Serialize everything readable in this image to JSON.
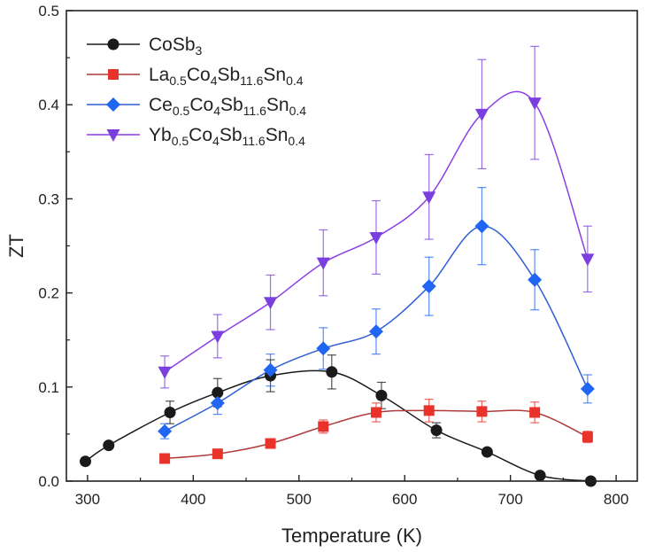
{
  "chart_data": {
    "type": "scatter",
    "title": "",
    "xlabel": "Temperature (K)",
    "ylabel": "ZT",
    "xlim": [
      280,
      820
    ],
    "ylim": [
      0,
      0.5
    ],
    "xticks": [
      300,
      400,
      500,
      600,
      700,
      800
    ],
    "yticks": [
      0.0,
      0.1,
      0.2,
      0.3,
      0.4,
      0.5
    ],
    "grid": false,
    "legend_position": "top-left",
    "series": [
      {
        "name": "CoSb3",
        "legend": {
          "base": "CoSb",
          "subs": [
            [
              "3",
              ""
            ]
          ]
        },
        "marker": "circle",
        "color": "#1a1a1a",
        "line_color": "#1a1a1a",
        "x": [
          298,
          320,
          378,
          423,
          473,
          531,
          578,
          630,
          678,
          728,
          776
        ],
        "y": [
          0.021,
          0.038,
          0.073,
          0.094,
          0.112,
          0.116,
          0.091,
          0.054,
          0.031,
          0.006,
          0.0
        ],
        "err": [
          0,
          0,
          0.012,
          0.015,
          0.017,
          0.018,
          0.014,
          0.008,
          0,
          0,
          0
        ]
      },
      {
        "name": "La0.5Co4Sb11.6Sn0.4",
        "legend": {
          "base": "La",
          "subs": [
            [
              "0.5",
              "Co"
            ],
            [
              "4",
              "Sb"
            ],
            [
              "11.6",
              "Sn"
            ],
            [
              "0.4",
              ""
            ]
          ]
        },
        "marker": "square",
        "color": "#e8322a",
        "line_color": "#b03a3a",
        "x": [
          373,
          423,
          473,
          523,
          573,
          623,
          673,
          723,
          773
        ],
        "y": [
          0.024,
          0.029,
          0.04,
          0.058,
          0.073,
          0.075,
          0.074,
          0.073,
          0.047
        ],
        "err": [
          0,
          0,
          0,
          0.007,
          0.01,
          0.012,
          0.011,
          0.011,
          0.006
        ]
      },
      {
        "name": "Ce0.5Co4Sb11.6Sn0.4",
        "legend": {
          "base": "Ce",
          "subs": [
            [
              "0.5",
              "Co"
            ],
            [
              "4",
              "Sb"
            ],
            [
              "11.6",
              "Sn"
            ],
            [
              "0.4",
              ""
            ]
          ]
        },
        "marker": "diamond",
        "color": "#2166f3",
        "line_color": "#2f5fd6",
        "x": [
          373,
          423,
          473,
          523,
          573,
          623,
          673,
          723,
          773
        ],
        "y": [
          0.053,
          0.083,
          0.118,
          0.141,
          0.159,
          0.207,
          0.271,
          0.214,
          0.098
        ],
        "err": [
          0.008,
          0.012,
          0.017,
          0.022,
          0.024,
          0.031,
          0.041,
          0.032,
          0.015
        ]
      },
      {
        "name": "Yb0.5Co4Sb11.6Sn0.4",
        "legend": {
          "base": "Yb",
          "subs": [
            [
              "0.5",
              "Co"
            ],
            [
              "4",
              "Sb"
            ],
            [
              "11.6",
              "Sn"
            ],
            [
              "0.4",
              ""
            ]
          ]
        },
        "marker": "triangle-down",
        "color": "#7b3fe0",
        "line_color": "#8a3fe6",
        "x": [
          373,
          423,
          473,
          523,
          573,
          623,
          673,
          723,
          773
        ],
        "y": [
          0.116,
          0.154,
          0.19,
          0.232,
          0.259,
          0.302,
          0.39,
          0.402,
          0.236
        ],
        "err": [
          0.017,
          0.023,
          0.029,
          0.035,
          0.039,
          0.045,
          0.058,
          0.06,
          0.035
        ]
      }
    ]
  }
}
